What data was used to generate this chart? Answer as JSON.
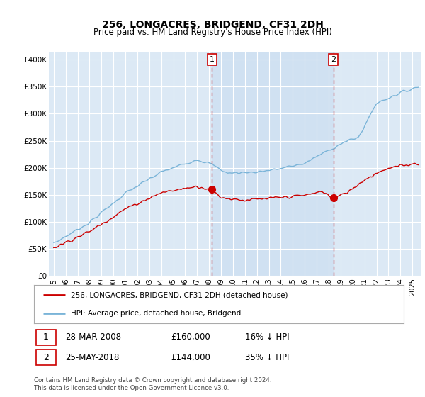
{
  "title": "256, LONGACRES, BRIDGEND, CF31 2DH",
  "subtitle": "Price paid vs. HM Land Registry's House Price Index (HPI)",
  "ylim": [
    0,
    410000
  ],
  "xlim_start": 1994.6,
  "xlim_end": 2025.7,
  "bg_color": "#dce9f5",
  "hpi_color": "#7ab4d8",
  "price_color": "#cc0000",
  "vline_color": "#cc0000",
  "shade_color": "#c8ddf0",
  "sale1_x": 2008.24,
  "sale1_y": 160000,
  "sale2_x": 2018.4,
  "sale2_y": 144000,
  "legend_line1": "256, LONGACRES, BRIDGEND, CF31 2DH (detached house)",
  "legend_line2": "HPI: Average price, detached house, Bridgend",
  "ann1_label": "1",
  "ann1_date": "28-MAR-2008",
  "ann1_price": "£160,000",
  "ann1_pct": "16% ↓ HPI",
  "ann2_label": "2",
  "ann2_date": "25-MAY-2018",
  "ann2_price": "£144,000",
  "ann2_pct": "35% ↓ HPI",
  "footer": "Contains HM Land Registry data © Crown copyright and database right 2024.\nThis data is licensed under the Open Government Licence v3.0."
}
